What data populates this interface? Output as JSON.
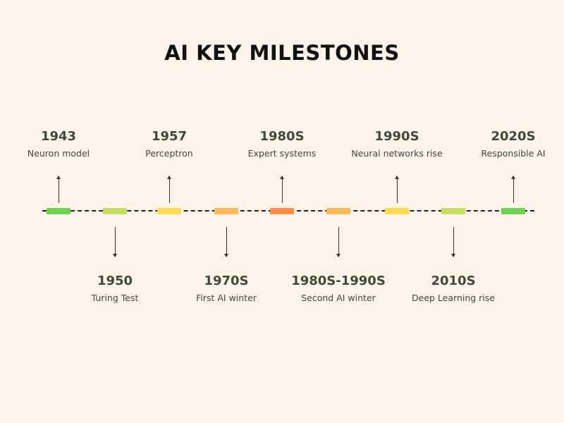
{
  "title": "AI KEY MILESTONES",
  "milestones": [
    {
      "year": "1943",
      "label": "Neuron model",
      "side": "above",
      "color": "#6ad44f"
    },
    {
      "year": "1950",
      "label": "Turing Test",
      "side": "below",
      "color": "#c5de5e"
    },
    {
      "year": "1957",
      "label": "Perceptron",
      "side": "above",
      "color": "#fcdb4f"
    },
    {
      "year": "1970S",
      "label": "First AI winter",
      "side": "below",
      "color": "#fdb858"
    },
    {
      "year": "1980S",
      "label": "Expert systems",
      "side": "above",
      "color": "#fd8a48"
    },
    {
      "year": "1980S-1990S",
      "label": "Second AI winter",
      "side": "below",
      "color": "#fdb858"
    },
    {
      "year": "1990S",
      "label": "Neural networks rise",
      "side": "above",
      "color": "#fcdb4f"
    },
    {
      "year": "2010S",
      "label": "Deep Learning rise",
      "side": "below",
      "color": "#c5de5e"
    },
    {
      "year": "2020S",
      "label": "Responsible AI",
      "side": "above",
      "color": "#6ad44f"
    }
  ]
}
